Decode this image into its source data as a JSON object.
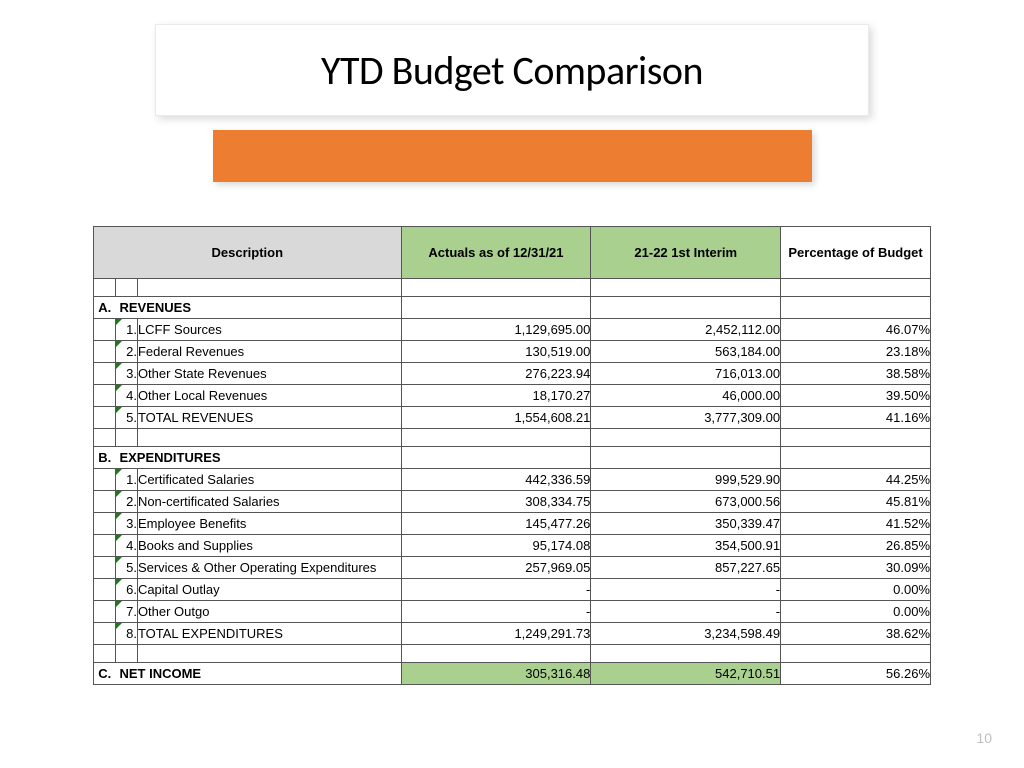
{
  "slide": {
    "title": "YTD Budget Comparison",
    "page_number": "10",
    "accent_color": "#ed7d31",
    "header_green": "#a9d08e",
    "header_gray": "#d9d9d9"
  },
  "table": {
    "headers": {
      "description": "Description",
      "actuals": "Actuals as of 12/31/21",
      "interim": "21-22 1st Interim",
      "percentage": "Percentage of Budget"
    },
    "sections": [
      {
        "letter": "A.",
        "label": "REVENUES",
        "rows": [
          {
            "num": "1.",
            "label": "LCFF Sources",
            "actuals": "1,129,695.00",
            "interim": "2,452,112.00",
            "pct": "46.07%"
          },
          {
            "num": "2.",
            "label": "Federal Revenues",
            "actuals": "130,519.00",
            "interim": "563,184.00",
            "pct": "23.18%"
          },
          {
            "num": "3.",
            "label": "Other State Revenues",
            "actuals": "276,223.94",
            "interim": "716,013.00",
            "pct": "38.58%"
          },
          {
            "num": "4.",
            "label": "Other Local Revenues",
            "actuals": "18,170.27",
            "interim": "46,000.00",
            "pct": "39.50%"
          },
          {
            "num": "5.",
            "label": "TOTAL REVENUES",
            "actuals": "1,554,608.21",
            "interim": "3,777,309.00",
            "pct": "41.16%"
          }
        ]
      },
      {
        "letter": "B.",
        "label": "EXPENDITURES",
        "rows": [
          {
            "num": "1.",
            "label": "Certificated Salaries",
            "actuals": "442,336.59",
            "interim": "999,529.90",
            "pct": "44.25%"
          },
          {
            "num": "2.",
            "label": "Non-certificated Salaries",
            "actuals": "308,334.75",
            "interim": "673,000.56",
            "pct": "45.81%"
          },
          {
            "num": "3.",
            "label": "Employee Benefits",
            "actuals": "145,477.26",
            "interim": "350,339.47",
            "pct": "41.52%"
          },
          {
            "num": "4.",
            "label": "Books and Supplies",
            "actuals": "95,174.08",
            "interim": "354,500.91",
            "pct": "26.85%"
          },
          {
            "num": "5.",
            "label": "Services & Other Operating Expenditures",
            "actuals": "257,969.05",
            "interim": "857,227.65",
            "pct": "30.09%"
          },
          {
            "num": "6.",
            "label": "Capital Outlay",
            "actuals": "-",
            "interim": "-",
            "pct": "0.00%"
          },
          {
            "num": "7.",
            "label": "Other Outgo",
            "actuals": "-",
            "interim": "-",
            "pct": "0.00%"
          },
          {
            "num": "8.",
            "label": "TOTAL EXPENDITURES",
            "actuals": "1,249,291.73",
            "interim": "3,234,598.49",
            "pct": "38.62%"
          }
        ]
      }
    ],
    "net_income": {
      "letter": "C.",
      "label": "NET INCOME",
      "actuals": "305,316.48",
      "interim": "542,710.51",
      "pct": "56.26%"
    }
  }
}
